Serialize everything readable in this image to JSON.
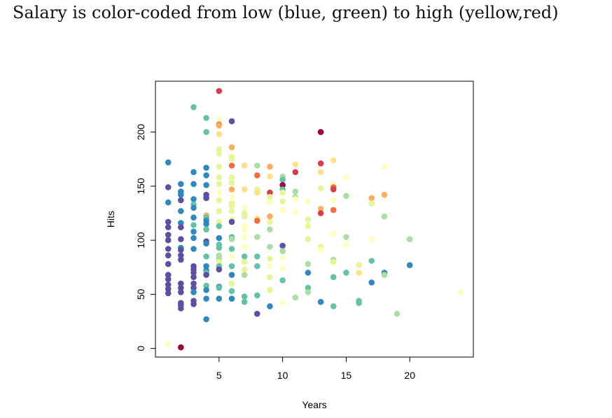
{
  "title": "Salary is color-coded from low (blue, green) to high (yellow,red)",
  "chart_data": {
    "type": "scatter",
    "title": "Salary is color-coded from low (blue, green) to high (yellow,red)",
    "xlabel": "Years",
    "ylabel": "Hits",
    "xlim": [
      0,
      25
    ],
    "ylim": [
      -8,
      247
    ],
    "xticks": [
      5,
      10,
      15,
      20
    ],
    "yticks": [
      0,
      50,
      100,
      150,
      200
    ],
    "grid": false,
    "palette": {
      "purple": "#5e4fa2",
      "blue": "#3288bd",
      "teal": "#66c2a5",
      "green": "#abdda4",
      "lightgreen": "#e6f598",
      "lightyellow": "#ffffbf",
      "lightorange": "#fee08b",
      "orange": "#fdae61",
      "darkorange": "#f46d43",
      "red": "#d53e4f",
      "darkred": "#9e0142"
    },
    "points": [
      {
        "x": 1,
        "y": 172,
        "c": "blue"
      },
      {
        "x": 1,
        "y": 149,
        "c": "purple"
      },
      {
        "x": 1,
        "y": 135,
        "c": "blue"
      },
      {
        "x": 1,
        "y": 117,
        "c": "purple"
      },
      {
        "x": 1,
        "y": 112,
        "c": "purple"
      },
      {
        "x": 1,
        "y": 105,
        "c": "purple"
      },
      {
        "x": 1,
        "y": 100,
        "c": "purple"
      },
      {
        "x": 1,
        "y": 92,
        "c": "purple"
      },
      {
        "x": 1,
        "y": 86,
        "c": "purple"
      },
      {
        "x": 1,
        "y": 78,
        "c": "purple"
      },
      {
        "x": 1,
        "y": 68,
        "c": "purple"
      },
      {
        "x": 1,
        "y": 64,
        "c": "purple"
      },
      {
        "x": 1,
        "y": 59,
        "c": "purple"
      },
      {
        "x": 1,
        "y": 55,
        "c": "purple"
      },
      {
        "x": 1,
        "y": 51,
        "c": "purple"
      },
      {
        "x": 1,
        "y": 4,
        "c": "lightyellow"
      },
      {
        "x": 2,
        "y": 152,
        "c": "blue"
      },
      {
        "x": 2,
        "y": 145,
        "c": "blue"
      },
      {
        "x": 2,
        "y": 142,
        "c": "blue"
      },
      {
        "x": 2,
        "y": 137,
        "c": "purple"
      },
      {
        "x": 2,
        "y": 127,
        "c": "blue"
      },
      {
        "x": 2,
        "y": 116,
        "c": "blue"
      },
      {
        "x": 2,
        "y": 112,
        "c": "purple"
      },
      {
        "x": 2,
        "y": 101,
        "c": "purple"
      },
      {
        "x": 2,
        "y": 93,
        "c": "blue"
      },
      {
        "x": 2,
        "y": 91,
        "c": "purple"
      },
      {
        "x": 2,
        "y": 86,
        "c": "purple"
      },
      {
        "x": 2,
        "y": 82,
        "c": "purple"
      },
      {
        "x": 2,
        "y": 60,
        "c": "purple"
      },
      {
        "x": 2,
        "y": 56,
        "c": "purple"
      },
      {
        "x": 2,
        "y": 52,
        "c": "purple"
      },
      {
        "x": 2,
        "y": 42,
        "c": "purple"
      },
      {
        "x": 2,
        "y": 40,
        "c": "purple"
      },
      {
        "x": 2,
        "y": 37,
        "c": "purple"
      },
      {
        "x": 2,
        "y": 1,
        "c": "darkred"
      },
      {
        "x": 3,
        "y": 223,
        "c": "teal"
      },
      {
        "x": 3,
        "y": 163,
        "c": "blue"
      },
      {
        "x": 3,
        "y": 152,
        "c": "blue"
      },
      {
        "x": 3,
        "y": 138,
        "c": "blue"
      },
      {
        "x": 3,
        "y": 133,
        "c": "teal"
      },
      {
        "x": 3,
        "y": 130,
        "c": "blue"
      },
      {
        "x": 3,
        "y": 121,
        "c": "blue"
      },
      {
        "x": 3,
        "y": 114,
        "c": "teal"
      },
      {
        "x": 3,
        "y": 108,
        "c": "blue"
      },
      {
        "x": 3,
        "y": 102,
        "c": "blue"
      },
      {
        "x": 3,
        "y": 92,
        "c": "blue"
      },
      {
        "x": 3,
        "y": 76,
        "c": "purple"
      },
      {
        "x": 3,
        "y": 73,
        "c": "purple"
      },
      {
        "x": 3,
        "y": 70,
        "c": "purple"
      },
      {
        "x": 3,
        "y": 66,
        "c": "purple"
      },
      {
        "x": 3,
        "y": 60,
        "c": "purple"
      },
      {
        "x": 3,
        "y": 56,
        "c": "purple"
      },
      {
        "x": 3,
        "y": 52,
        "c": "blue"
      },
      {
        "x": 3,
        "y": 44,
        "c": "purple"
      },
      {
        "x": 3,
        "y": 41,
        "c": "purple"
      },
      {
        "x": 4,
        "y": 213,
        "c": "teal"
      },
      {
        "x": 4,
        "y": 200,
        "c": "teal"
      },
      {
        "x": 4,
        "y": 167,
        "c": "blue"
      },
      {
        "x": 4,
        "y": 160,
        "c": "blue"
      },
      {
        "x": 4,
        "y": 151,
        "c": "blue"
      },
      {
        "x": 4,
        "y": 142,
        "c": "purple"
      },
      {
        "x": 4,
        "y": 139,
        "c": "purple"
      },
      {
        "x": 4,
        "y": 123,
        "c": "orange"
      },
      {
        "x": 4,
        "y": 121,
        "c": "teal"
      },
      {
        "x": 4,
        "y": 118,
        "c": "blue"
      },
      {
        "x": 4,
        "y": 115,
        "c": "blue"
      },
      {
        "x": 4,
        "y": 110,
        "c": "teal"
      },
      {
        "x": 4,
        "y": 99,
        "c": "purple"
      },
      {
        "x": 4,
        "y": 97,
        "c": "blue"
      },
      {
        "x": 4,
        "y": 85,
        "c": "teal"
      },
      {
        "x": 4,
        "y": 76,
        "c": "blue"
      },
      {
        "x": 4,
        "y": 72,
        "c": "blue"
      },
      {
        "x": 4,
        "y": 70,
        "c": "teal"
      },
      {
        "x": 4,
        "y": 68,
        "c": "purple"
      },
      {
        "x": 4,
        "y": 58,
        "c": "teal"
      },
      {
        "x": 4,
        "y": 54,
        "c": "blue"
      },
      {
        "x": 4,
        "y": 46,
        "c": "blue"
      },
      {
        "x": 4,
        "y": 27,
        "c": "blue"
      },
      {
        "x": 5,
        "y": 238,
        "c": "red"
      },
      {
        "x": 5,
        "y": 212,
        "c": "lightyellow"
      },
      {
        "x": 5,
        "y": 207,
        "c": "darkorange"
      },
      {
        "x": 5,
        "y": 206,
        "c": "orange"
      },
      {
        "x": 5,
        "y": 198,
        "c": "lightorange"
      },
      {
        "x": 5,
        "y": 184,
        "c": "lightgreen"
      },
      {
        "x": 5,
        "y": 180,
        "c": "lightgreen"
      },
      {
        "x": 5,
        "y": 168,
        "c": "lightgreen"
      },
      {
        "x": 5,
        "y": 158,
        "c": "lightgreen"
      },
      {
        "x": 5,
        "y": 152,
        "c": "lightgreen"
      },
      {
        "x": 5,
        "y": 144,
        "c": "lightyellow"
      },
      {
        "x": 5,
        "y": 137,
        "c": "lightgreen"
      },
      {
        "x": 5,
        "y": 127,
        "c": "lightgreen"
      },
      {
        "x": 5,
        "y": 117,
        "c": "lightgreen"
      },
      {
        "x": 5,
        "y": 113,
        "c": "teal"
      },
      {
        "x": 5,
        "y": 102,
        "c": "blue"
      },
      {
        "x": 5,
        "y": 96,
        "c": "teal"
      },
      {
        "x": 5,
        "y": 93,
        "c": "teal"
      },
      {
        "x": 5,
        "y": 86,
        "c": "green"
      },
      {
        "x": 5,
        "y": 83,
        "c": "green"
      },
      {
        "x": 5,
        "y": 80,
        "c": "lightgreen"
      },
      {
        "x": 5,
        "y": 76,
        "c": "teal"
      },
      {
        "x": 5,
        "y": 73,
        "c": "purple"
      },
      {
        "x": 5,
        "y": 57,
        "c": "blue"
      },
      {
        "x": 5,
        "y": 56,
        "c": "teal"
      },
      {
        "x": 5,
        "y": 46,
        "c": "blue"
      },
      {
        "x": 6,
        "y": 210,
        "c": "purple"
      },
      {
        "x": 6,
        "y": 186,
        "c": "orange"
      },
      {
        "x": 6,
        "y": 177,
        "c": "lightgreen"
      },
      {
        "x": 6,
        "y": 175,
        "c": "lightgreen"
      },
      {
        "x": 6,
        "y": 169,
        "c": "darkorange"
      },
      {
        "x": 6,
        "y": 158,
        "c": "lightgreen"
      },
      {
        "x": 6,
        "y": 153,
        "c": "lightgreen"
      },
      {
        "x": 6,
        "y": 147,
        "c": "orange"
      },
      {
        "x": 6,
        "y": 140,
        "c": "lightyellow"
      },
      {
        "x": 6,
        "y": 134,
        "c": "lightgreen"
      },
      {
        "x": 6,
        "y": 132,
        "c": "lightgreen"
      },
      {
        "x": 6,
        "y": 127,
        "c": "lightgreen"
      },
      {
        "x": 6,
        "y": 119,
        "c": "lightgreen"
      },
      {
        "x": 6,
        "y": 117,
        "c": "purple"
      },
      {
        "x": 6,
        "y": 103,
        "c": "teal"
      },
      {
        "x": 6,
        "y": 101,
        "c": "green"
      },
      {
        "x": 6,
        "y": 92,
        "c": "teal"
      },
      {
        "x": 6,
        "y": 85,
        "c": "lightyellow"
      },
      {
        "x": 6,
        "y": 76,
        "c": "teal"
      },
      {
        "x": 6,
        "y": 68,
        "c": "blue"
      },
      {
        "x": 6,
        "y": 60,
        "c": "lightgreen"
      },
      {
        "x": 6,
        "y": 53,
        "c": "teal"
      },
      {
        "x": 6,
        "y": 46,
        "c": "blue"
      },
      {
        "x": 7,
        "y": 169,
        "c": "lightorange"
      },
      {
        "x": 7,
        "y": 147,
        "c": "lightorange"
      },
      {
        "x": 7,
        "y": 130,
        "c": "lightyellow"
      },
      {
        "x": 7,
        "y": 125,
        "c": "lightgreen"
      },
      {
        "x": 7,
        "y": 122,
        "c": "lightgreen"
      },
      {
        "x": 7,
        "y": 113,
        "c": "lightyellow"
      },
      {
        "x": 7,
        "y": 110,
        "c": "lightyellow"
      },
      {
        "x": 7,
        "y": 103,
        "c": "lightyellow"
      },
      {
        "x": 7,
        "y": 94,
        "c": "lightyellow"
      },
      {
        "x": 7,
        "y": 85,
        "c": "teal"
      },
      {
        "x": 7,
        "y": 80,
        "c": "lightgreen"
      },
      {
        "x": 7,
        "y": 73,
        "c": "lightgreen"
      },
      {
        "x": 7,
        "y": 68,
        "c": "green"
      },
      {
        "x": 7,
        "y": 48,
        "c": "teal"
      },
      {
        "x": 7,
        "y": 43,
        "c": "teal"
      },
      {
        "x": 8,
        "y": 169,
        "c": "green"
      },
      {
        "x": 8,
        "y": 160,
        "c": "darkorange"
      },
      {
        "x": 8,
        "y": 147,
        "c": "lightgreen"
      },
      {
        "x": 8,
        "y": 144,
        "c": "lightorange"
      },
      {
        "x": 8,
        "y": 120,
        "c": "lightorange"
      },
      {
        "x": 8,
        "y": 118,
        "c": "darkorange"
      },
      {
        "x": 8,
        "y": 103,
        "c": "green"
      },
      {
        "x": 8,
        "y": 85,
        "c": "teal"
      },
      {
        "x": 8,
        "y": 76,
        "c": "teal"
      },
      {
        "x": 8,
        "y": 49,
        "c": "teal"
      },
      {
        "x": 8,
        "y": 32,
        "c": "purple"
      },
      {
        "x": 9,
        "y": 168,
        "c": "orange"
      },
      {
        "x": 9,
        "y": 159,
        "c": "lightorange"
      },
      {
        "x": 9,
        "y": 144,
        "c": "red"
      },
      {
        "x": 9,
        "y": 140,
        "c": "lightgreen"
      },
      {
        "x": 9,
        "y": 135,
        "c": "lightyellow"
      },
      {
        "x": 9,
        "y": 122,
        "c": "orange"
      },
      {
        "x": 9,
        "y": 117,
        "c": "lightgreen"
      },
      {
        "x": 9,
        "y": 110,
        "c": "green"
      },
      {
        "x": 9,
        "y": 94,
        "c": "green"
      },
      {
        "x": 9,
        "y": 83,
        "c": "lightgreen"
      },
      {
        "x": 9,
        "y": 76,
        "c": "lightyellow"
      },
      {
        "x": 9,
        "y": 66,
        "c": "lightgreen"
      },
      {
        "x": 9,
        "y": 54,
        "c": "lightgreen"
      },
      {
        "x": 9,
        "y": 39,
        "c": "blue"
      },
      {
        "x": 10,
        "y": 159,
        "c": "green"
      },
      {
        "x": 10,
        "y": 156,
        "c": "teal"
      },
      {
        "x": 10,
        "y": 151,
        "c": "darkred"
      },
      {
        "x": 10,
        "y": 147,
        "c": "teal"
      },
      {
        "x": 10,
        "y": 144,
        "c": "lightgreen"
      },
      {
        "x": 10,
        "y": 136,
        "c": "lightgreen"
      },
      {
        "x": 10,
        "y": 128,
        "c": "lightyellow"
      },
      {
        "x": 10,
        "y": 95,
        "c": "purple"
      },
      {
        "x": 10,
        "y": 90,
        "c": "green"
      },
      {
        "x": 10,
        "y": 84,
        "c": "lightyellow"
      },
      {
        "x": 10,
        "y": 74,
        "c": "lightyellow"
      },
      {
        "x": 10,
        "y": 63,
        "c": "teal"
      },
      {
        "x": 10,
        "y": 42,
        "c": "lightyellow"
      },
      {
        "x": 11,
        "y": 170,
        "c": "lightorange"
      },
      {
        "x": 11,
        "y": 163,
        "c": "red"
      },
      {
        "x": 11,
        "y": 145,
        "c": "green"
      },
      {
        "x": 11,
        "y": 140,
        "c": "green"
      },
      {
        "x": 11,
        "y": 138,
        "c": "lightyellow"
      },
      {
        "x": 11,
        "y": 126,
        "c": "lightyellow"
      },
      {
        "x": 11,
        "y": 47,
        "c": "green"
      },
      {
        "x": 12,
        "y": 136,
        "c": "lightyellow"
      },
      {
        "x": 12,
        "y": 119,
        "c": "lightgreen"
      },
      {
        "x": 12,
        "y": 113,
        "c": "lightgreen"
      },
      {
        "x": 12,
        "y": 101,
        "c": "lightgreen"
      },
      {
        "x": 12,
        "y": 78,
        "c": "green"
      },
      {
        "x": 12,
        "y": 70,
        "c": "blue"
      },
      {
        "x": 12,
        "y": 56,
        "c": "teal"
      },
      {
        "x": 12,
        "y": 52,
        "c": "green"
      },
      {
        "x": 13,
        "y": 200,
        "c": "darkred"
      },
      {
        "x": 13,
        "y": 171,
        "c": "red"
      },
      {
        "x": 13,
        "y": 163,
        "c": "lightorange"
      },
      {
        "x": 13,
        "y": 148,
        "c": "lightgreen"
      },
      {
        "x": 13,
        "y": 129,
        "c": "orange"
      },
      {
        "x": 13,
        "y": 125,
        "c": "red"
      },
      {
        "x": 13,
        "y": 94,
        "c": "lightgreen"
      },
      {
        "x": 13,
        "y": 91,
        "c": "lightyellow"
      },
      {
        "x": 13,
        "y": 43,
        "c": "blue"
      },
      {
        "x": 14,
        "y": 174,
        "c": "lightorange"
      },
      {
        "x": 14,
        "y": 152,
        "c": "lightyellow"
      },
      {
        "x": 14,
        "y": 149,
        "c": "darkorange"
      },
      {
        "x": 14,
        "y": 147,
        "c": "red"
      },
      {
        "x": 14,
        "y": 137,
        "c": "lightyellow"
      },
      {
        "x": 14,
        "y": 128,
        "c": "darkorange"
      },
      {
        "x": 14,
        "y": 106,
        "c": "lightyellow"
      },
      {
        "x": 14,
        "y": 82,
        "c": "green"
      },
      {
        "x": 14,
        "y": 80,
        "c": "lightgreen"
      },
      {
        "x": 14,
        "y": 66,
        "c": "teal"
      },
      {
        "x": 14,
        "y": 39,
        "c": "teal"
      },
      {
        "x": 15,
        "y": 158,
        "c": "lightyellow"
      },
      {
        "x": 15,
        "y": 141,
        "c": "green"
      },
      {
        "x": 15,
        "y": 103,
        "c": "green"
      },
      {
        "x": 15,
        "y": 96,
        "c": "lightyellow"
      },
      {
        "x": 15,
        "y": 70,
        "c": "teal"
      },
      {
        "x": 16,
        "y": 77,
        "c": "lightgreen"
      },
      {
        "x": 16,
        "y": 70,
        "c": "lightorange"
      },
      {
        "x": 16,
        "y": 44,
        "c": "teal"
      },
      {
        "x": 16,
        "y": 42,
        "c": "teal"
      },
      {
        "x": 17,
        "y": 139,
        "c": "orange"
      },
      {
        "x": 17,
        "y": 134,
        "c": "lightgreen"
      },
      {
        "x": 17,
        "y": 101,
        "c": "lightyellow"
      },
      {
        "x": 17,
        "y": 81,
        "c": "teal"
      },
      {
        "x": 17,
        "y": 61,
        "c": "blue"
      },
      {
        "x": 18,
        "y": 168,
        "c": "lightyellow"
      },
      {
        "x": 18,
        "y": 142,
        "c": "orange"
      },
      {
        "x": 18,
        "y": 122,
        "c": "green"
      },
      {
        "x": 18,
        "y": 70,
        "c": "blue"
      },
      {
        "x": 18,
        "y": 68,
        "c": "green"
      },
      {
        "x": 19,
        "y": 32,
        "c": "green"
      },
      {
        "x": 20,
        "y": 101,
        "c": "green"
      },
      {
        "x": 20,
        "y": 77,
        "c": "blue"
      },
      {
        "x": 24,
        "y": 52,
        "c": "lightyellow"
      }
    ]
  }
}
